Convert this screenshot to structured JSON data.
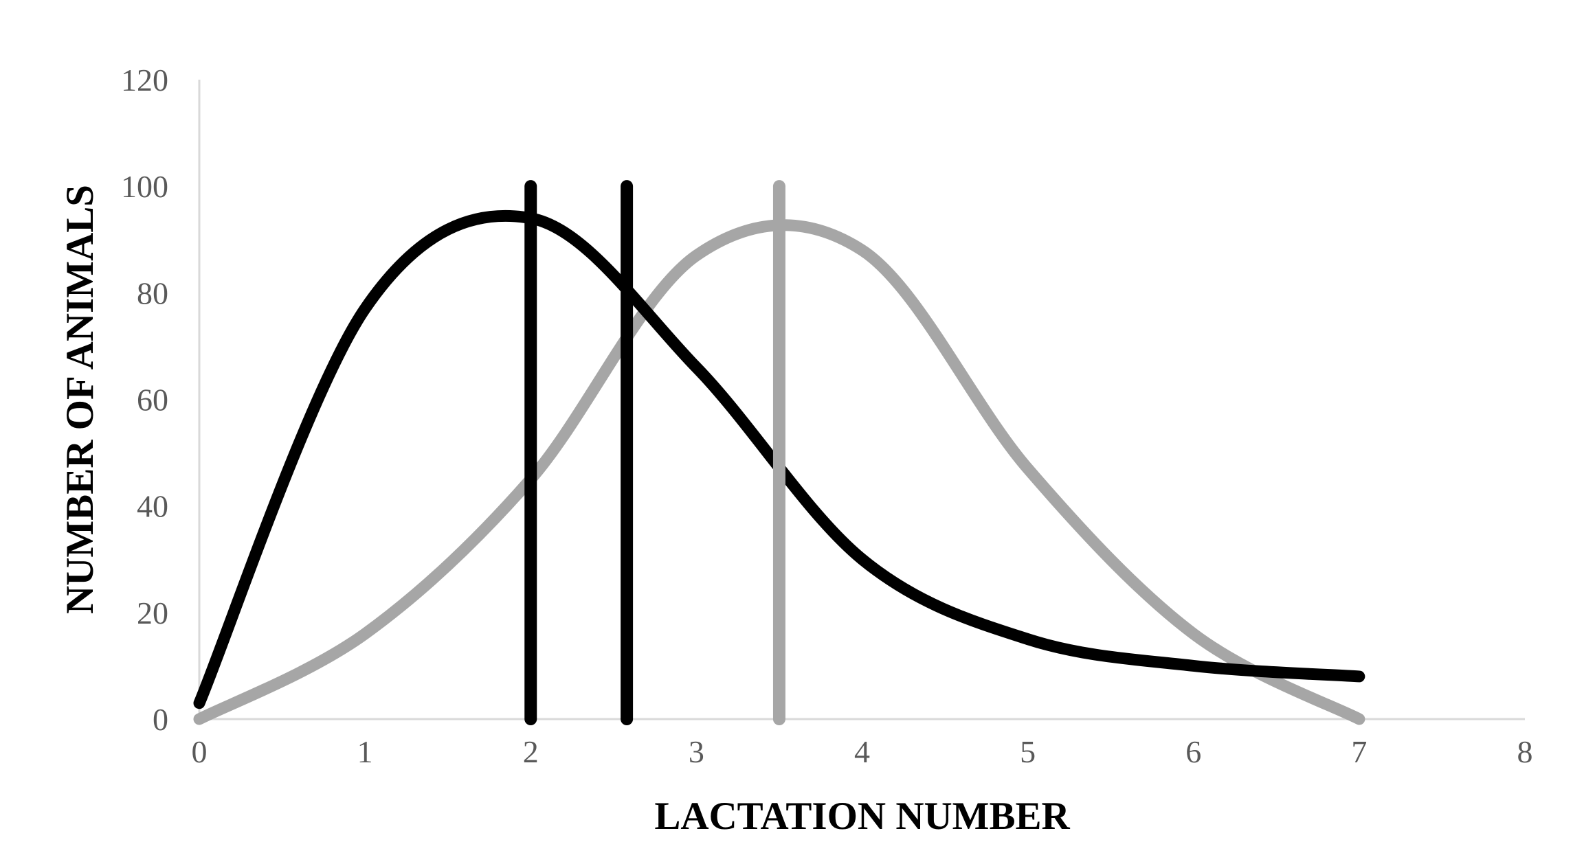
{
  "chart_data": {
    "type": "line",
    "title": "",
    "xlabel": "LACTATION NUMBER",
    "ylabel": "NUMBER OF ANIMALS",
    "xlim": [
      0,
      8
    ],
    "ylim": [
      0,
      120
    ],
    "x_ticks": [
      0,
      1,
      2,
      3,
      4,
      5,
      6,
      7,
      8
    ],
    "y_ticks": [
      0,
      20,
      40,
      60,
      80,
      100,
      120
    ],
    "grid": false,
    "legend": "none",
    "series": [
      {
        "color": "#000000",
        "smooth": true,
        "points": [
          [
            0,
            3
          ],
          [
            1,
            77
          ],
          [
            2,
            94
          ],
          [
            3,
            66
          ],
          [
            4,
            30
          ],
          [
            5,
            15
          ],
          [
            6,
            10
          ],
          [
            7,
            8
          ]
        ]
      },
      {
        "color": "#a6a6a6",
        "smooth": true,
        "points": [
          [
            0,
            0
          ],
          [
            1,
            16
          ],
          [
            2,
            45
          ],
          [
            3,
            87
          ],
          [
            4,
            88
          ],
          [
            5,
            47
          ],
          [
            6,
            16
          ],
          [
            7,
            0
          ]
        ]
      }
    ],
    "vertical_lines": [
      {
        "x": 2.0,
        "y_from": 0,
        "y_to": 100,
        "color": "#000000"
      },
      {
        "x": 2.58,
        "y_from": 0,
        "y_to": 100,
        "color": "#000000"
      },
      {
        "x": 3.5,
        "y_from": 0,
        "y_to": 100,
        "color": "#a6a6a6"
      }
    ],
    "axis_color": "#d9d9d9"
  }
}
